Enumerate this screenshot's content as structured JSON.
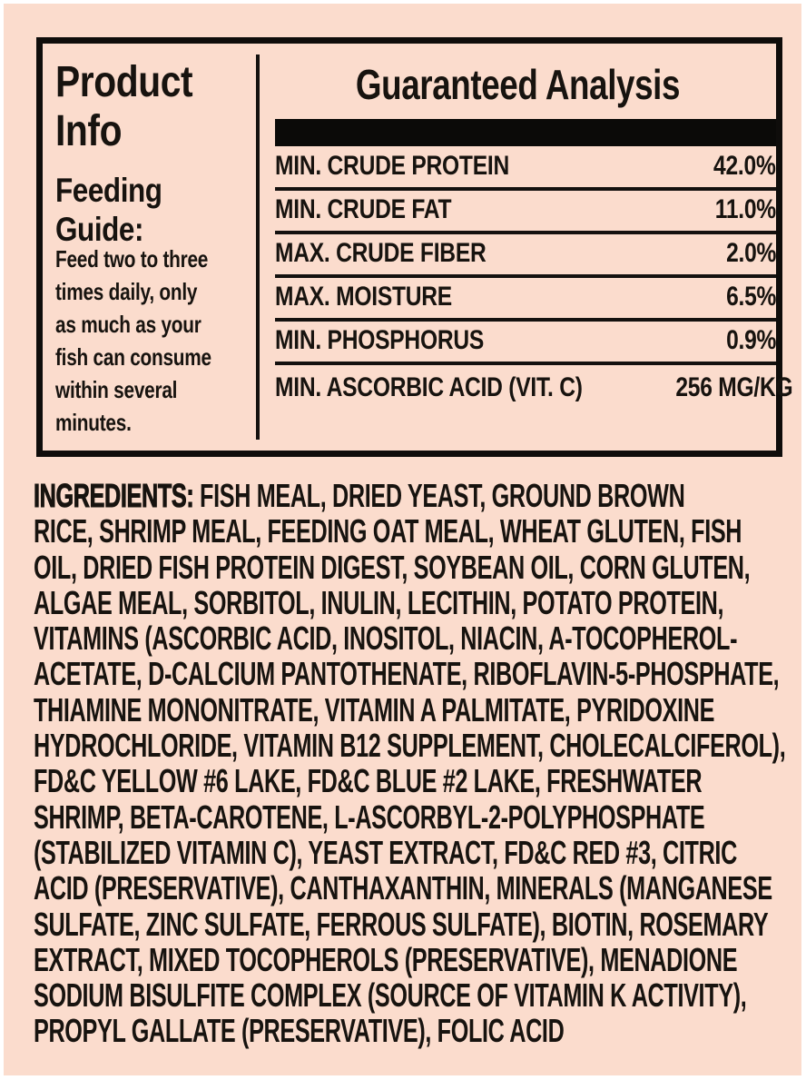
{
  "colors": {
    "background": "#fbdccd",
    "ink": "#17130f",
    "panel_border": "#0f0d0b",
    "header_bar": "#0b0a08",
    "page_frame": "#ffffff"
  },
  "product_info": {
    "title": "Product\nInfo",
    "feeding_guide": {
      "heading": "Feeding\nGuide:",
      "body": "Feed two to three\ntimes daily, only\nas much as your\nfish can consume\nwithin several\nminutes."
    }
  },
  "guaranteed_analysis": {
    "title": "Guaranteed Analysis",
    "rows": [
      {
        "label": "MIN. CRUDE PROTEIN",
        "value": "42.0%"
      },
      {
        "label": "MIN. CRUDE FAT",
        "value": "11.0%"
      },
      {
        "label": "MAX. CRUDE FIBER",
        "value": "2.0%"
      },
      {
        "label": "MAX. MOISTURE",
        "value": "6.5%"
      },
      {
        "label": "MIN. PHOSPHORUS",
        "value": "0.9%"
      },
      {
        "label": "MIN. ASCORBIC ACID (VIT. C)",
        "value": "256 MG/KG"
      }
    ]
  },
  "ingredients": {
    "heading": "INGREDIENTS:",
    "body": " FISH MEAL, DRIED YEAST, GROUND BROWN\nRICE, SHRIMP MEAL, FEEDING OAT MEAL, WHEAT GLUTEN, FISH\nOIL, DRIED FISH PROTEIN DIGEST, SOYBEAN OIL, CORN GLUTEN,\nALGAE MEAL, SORBITOL, INULIN, LECITHIN, POTATO PROTEIN,\nVITAMINS (ASCORBIC ACID, INOSITOL, NIACIN, A-TOCOPHEROL-\nACETATE, D-CALCIUM PANTOTHENATE, RIBOFLAVIN-5-PHOSPHATE,\nTHIAMINE MONONITRATE, VITAMIN A PALMITATE, PYRIDOXINE\nHYDROCHLORIDE, VITAMIN B12 SUPPLEMENT, CHOLECALCIFEROL),\nFD&C YELLOW #6 LAKE, FD&C BLUE #2 LAKE, FRESHWATER\nSHRIMP, BETA-CAROTENE, L-ASCORBYL-2-POLYPHOSPHATE\n(STABILIZED VITAMIN C), YEAST EXTRACT, FD&C RED #3, CITRIC\nACID (PRESERVATIVE), CANTHAXANTHIN, MINERALS (MANGANESE\nSULFATE, ZINC SULFATE, FERROUS SULFATE), BIOTIN, ROSEMARY\nEXTRACT, MIXED TOCOPHEROLS (PRESERVATIVE), MENADIONE\nSODIUM BISULFITE COMPLEX (SOURCE OF VITAMIN K ACTIVITY),\nPROPYL GALLATE (PRESERVATIVE), FOLIC ACID"
  }
}
